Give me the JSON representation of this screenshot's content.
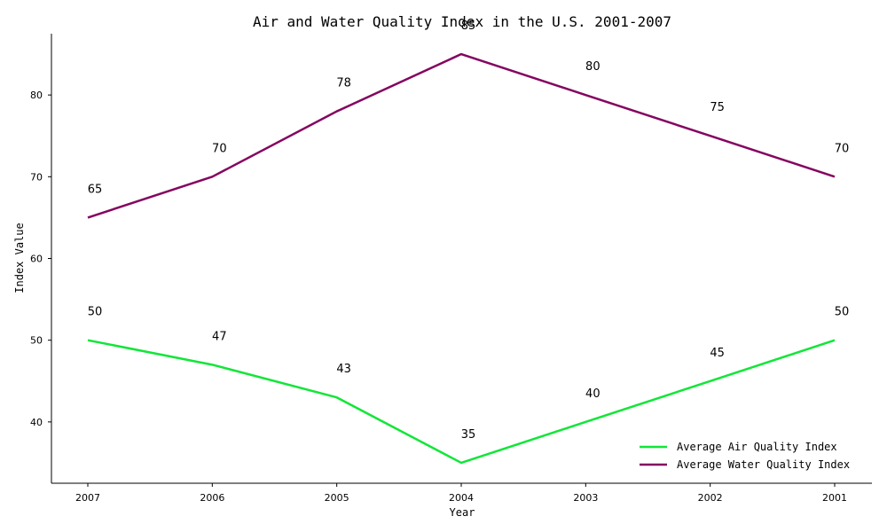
{
  "chart_data": {
    "type": "line",
    "title": "Air and Water Quality Index in the U.S. 2001-2007",
    "xlabel": "Year",
    "ylabel": "Index Value",
    "categories": [
      "2007",
      "2006",
      "2005",
      "2004",
      "2003",
      "2002",
      "2001"
    ],
    "ylim": [
      32.5,
      87.5
    ],
    "yticks": [
      "40",
      "50",
      "60",
      "70",
      "80"
    ],
    "grid": false,
    "legend_position": "lower-right",
    "series": [
      {
        "name": "Average Air Quality Index",
        "color": "#11e638",
        "values": [
          50,
          47,
          43,
          35,
          40,
          45,
          50
        ]
      },
      {
        "name": "Average Water Quality Index",
        "color": "#840560",
        "values": [
          65,
          70,
          78,
          85,
          80,
          75,
          70
        ]
      }
    ]
  }
}
